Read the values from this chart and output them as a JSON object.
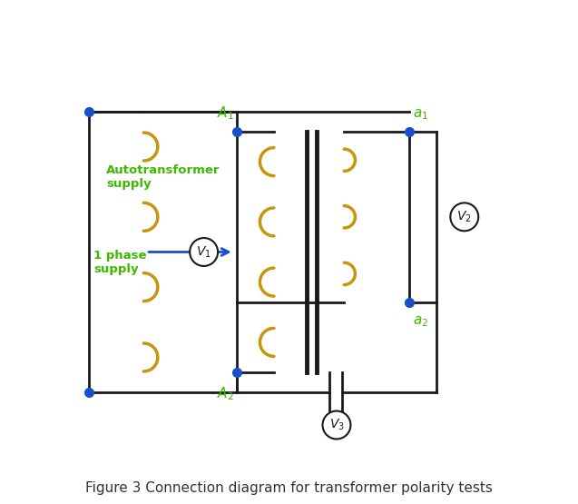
{
  "fig_width": 6.37,
  "fig_height": 5.55,
  "dpi": 100,
  "bg_color": "#ffffff",
  "wire_color": "#1a1a1a",
  "coil_color": "#c8960c",
  "dot_color": "#1a4fcc",
  "label_color": "#3dba00",
  "voltmeter_color": "#1a1a1a",
  "arrow_color": "#1a4fcc",
  "caption": "Figure 3 Connection diagram for transformer polarity tests",
  "caption_fontsize": 11,
  "A1_label": "A",
  "A1_sub": "1",
  "A2_label": "A",
  "A2_sub": "2",
  "a1_label": "a",
  "a1_sub": "1",
  "a2_label": "a",
  "a2_sub": "2",
  "V1_label": "V",
  "V1_sub": "1",
  "V2_label": "V",
  "V2_sub": "2",
  "V3_label": "V",
  "V3_sub": "3",
  "autotransformer_label": "Autotransformer\nsupply",
  "supply_label": "1 phase\nsupply"
}
